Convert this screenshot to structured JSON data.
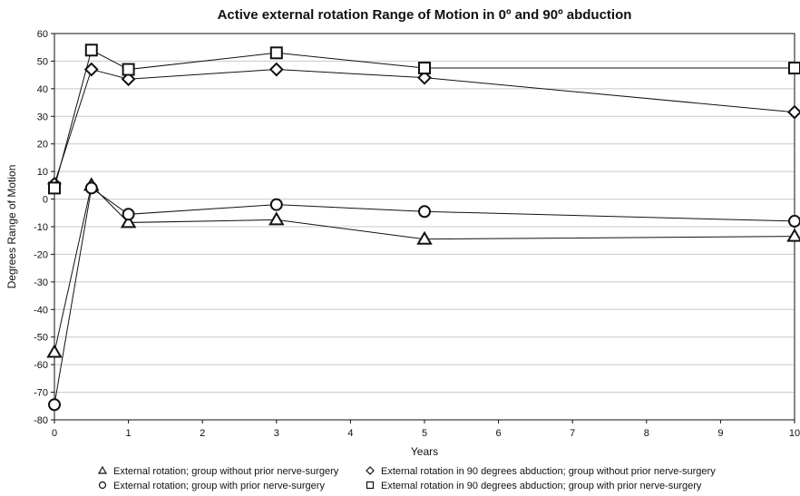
{
  "chart_data": {
    "type": "line",
    "title": "Active external rotation Range of Motion in 0º and 90º abduction",
    "xlabel": "Years",
    "ylabel": "Degrees Range of Motion",
    "xlim": [
      0,
      10
    ],
    "ylim": [
      -80,
      60
    ],
    "x_ticks": [
      "0",
      "1",
      "2",
      "3",
      "4",
      "5",
      "6",
      "7",
      "8",
      "9",
      "10"
    ],
    "y_ticks": [
      "60",
      "50",
      "40",
      "30",
      "20",
      "10",
      "0",
      "-10",
      "-20",
      "-30",
      "-40",
      "-50",
      "-60",
      "-70",
      "-80"
    ],
    "grid": "horizontal",
    "legend_position": "bottom",
    "series": [
      {
        "name": "External rotation; group without prior nerve-surgery",
        "marker": "triangle",
        "x": [
          0,
          0.5,
          1,
          3,
          5,
          10
        ],
        "y": [
          -55.5,
          5,
          -8.5,
          -7.5,
          -14.5,
          -13.5
        ]
      },
      {
        "name": "External rotation; group with prior nerve-surgery",
        "marker": "circle",
        "x": [
          0,
          0.5,
          1,
          3,
          5,
          10
        ],
        "y": [
          -74.5,
          4,
          -5.5,
          -2,
          -4.5,
          -8
        ]
      },
      {
        "name": "External rotation in 90 degrees abduction; group without prior nerve-surgery",
        "marker": "diamond",
        "x": [
          0,
          0.5,
          1,
          3,
          5,
          10
        ],
        "y": [
          5.5,
          47,
          43.5,
          47,
          44,
          31.5
        ]
      },
      {
        "name": "External rotation in 90 degrees abduction; group with prior nerve-surgery",
        "marker": "square",
        "x": [
          0,
          0.5,
          1,
          3,
          5,
          10
        ],
        "y": [
          4,
          54,
          47,
          53,
          47.5,
          47.5
        ]
      }
    ]
  }
}
